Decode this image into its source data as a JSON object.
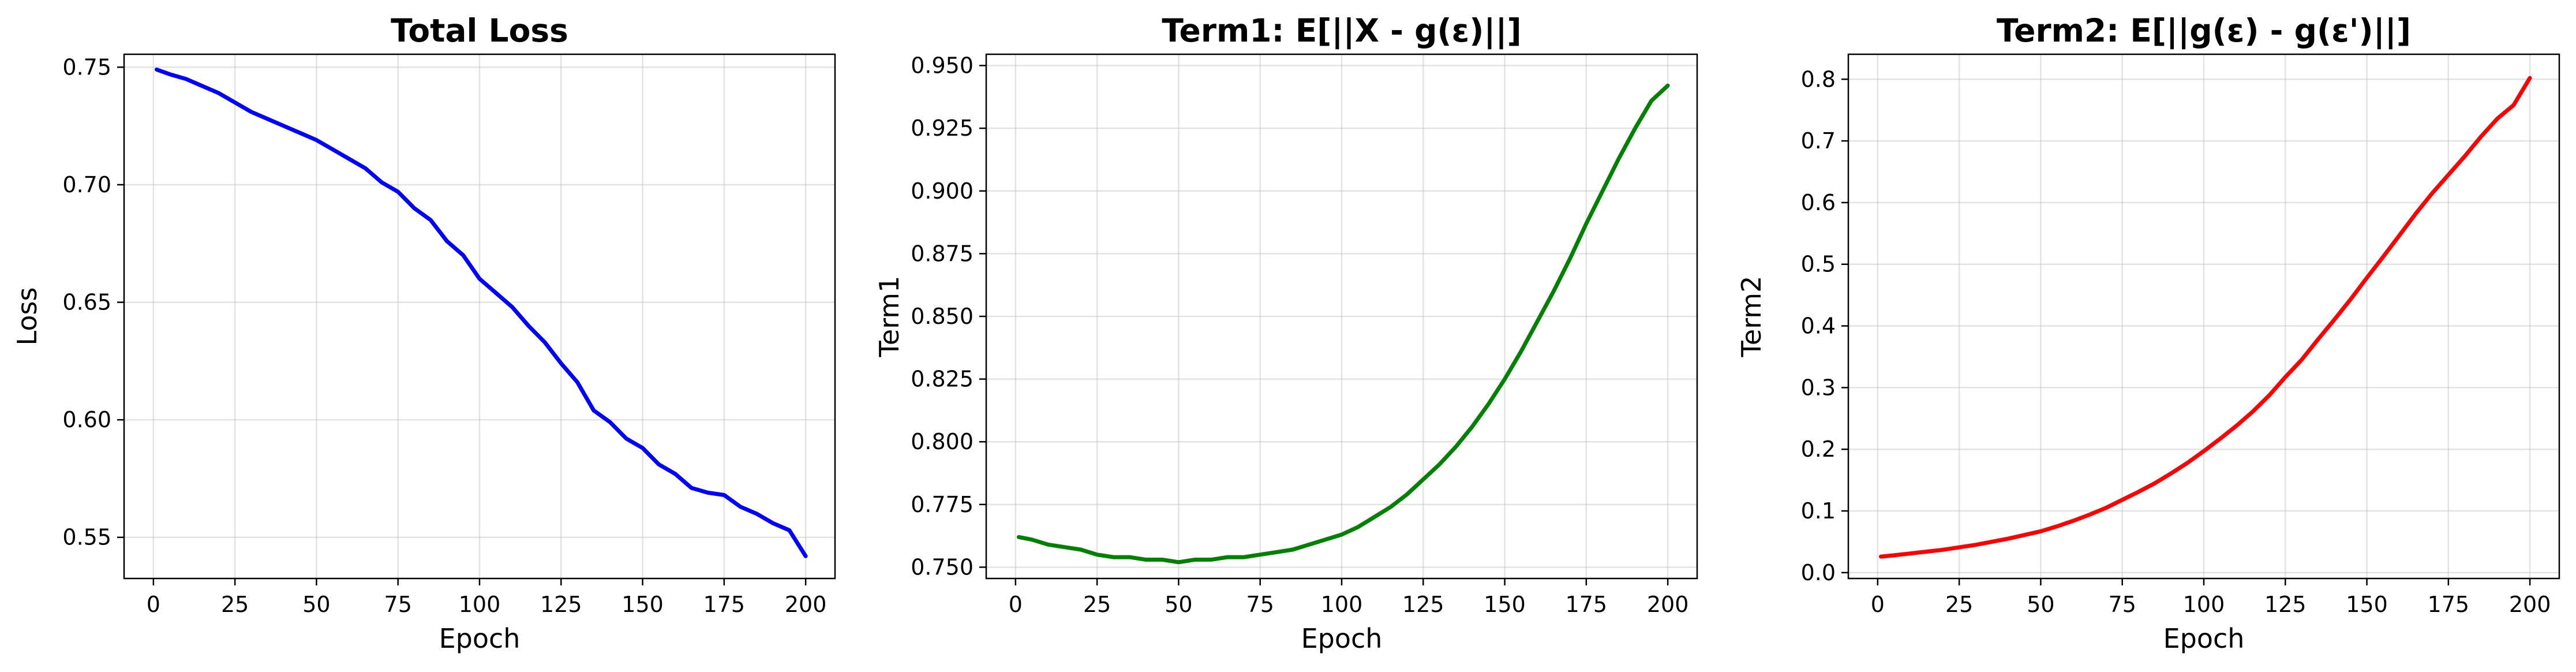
{
  "chart_data": [
    {
      "type": "line",
      "title": "Total Loss",
      "xlabel": "Epoch",
      "ylabel": "Loss",
      "xlim": [
        -9,
        209
      ],
      "ylim": [
        0.5325,
        0.7555
      ],
      "xticks": [
        0,
        25,
        50,
        75,
        100,
        125,
        150,
        175,
        200
      ],
      "yticks": [
        0.55,
        0.6,
        0.65,
        0.7,
        0.75
      ],
      "ytick_decimals": 2,
      "grid": true,
      "series": [
        {
          "color": "#0000ff",
          "x": [
            1,
            5,
            10,
            15,
            20,
            25,
            30,
            35,
            40,
            45,
            50,
            55,
            60,
            65,
            70,
            75,
            80,
            85,
            90,
            95,
            100,
            105,
            110,
            115,
            120,
            125,
            130,
            135,
            140,
            145,
            150,
            155,
            160,
            165,
            170,
            175,
            180,
            185,
            190,
            195,
            200
          ],
          "y": [
            0.749,
            0.747,
            0.745,
            0.742,
            0.739,
            0.735,
            0.731,
            0.728,
            0.725,
            0.722,
            0.719,
            0.715,
            0.711,
            0.707,
            0.701,
            0.697,
            0.69,
            0.685,
            0.676,
            0.67,
            0.66,
            0.654,
            0.648,
            0.64,
            0.633,
            0.624,
            0.616,
            0.604,
            0.599,
            0.592,
            0.588,
            0.581,
            0.577,
            0.571,
            0.569,
            0.568,
            0.563,
            0.56,
            0.556,
            0.553,
            0.542
          ]
        }
      ]
    },
    {
      "type": "line",
      "title": "Term1: E[||X - g(ε)||]",
      "xlabel": "Epoch",
      "ylabel": "Term1",
      "xlim": [
        -9,
        209
      ],
      "ylim": [
        0.7455,
        0.9545
      ],
      "xticks": [
        0,
        25,
        50,
        75,
        100,
        125,
        150,
        175,
        200
      ],
      "yticks": [
        0.75,
        0.775,
        0.8,
        0.825,
        0.85,
        0.875,
        0.9,
        0.925,
        0.95
      ],
      "ytick_decimals": 3,
      "grid": true,
      "series": [
        {
          "color": "#008000",
          "x": [
            1,
            5,
            10,
            15,
            20,
            25,
            30,
            35,
            40,
            45,
            50,
            55,
            60,
            65,
            70,
            75,
            80,
            85,
            90,
            95,
            100,
            105,
            110,
            115,
            120,
            125,
            130,
            135,
            140,
            145,
            150,
            155,
            160,
            165,
            170,
            175,
            180,
            185,
            190,
            195,
            200
          ],
          "y": [
            0.762,
            0.761,
            0.759,
            0.758,
            0.757,
            0.755,
            0.754,
            0.754,
            0.753,
            0.753,
            0.752,
            0.753,
            0.753,
            0.754,
            0.754,
            0.755,
            0.756,
            0.757,
            0.759,
            0.761,
            0.763,
            0.766,
            0.77,
            0.774,
            0.779,
            0.785,
            0.791,
            0.798,
            0.806,
            0.815,
            0.825,
            0.836,
            0.848,
            0.86,
            0.873,
            0.887,
            0.9,
            0.913,
            0.925,
            0.936,
            0.942
          ]
        }
      ]
    },
    {
      "type": "line",
      "title": "Term2: E[||g(ε) - g(ε')||]",
      "xlabel": "Epoch",
      "ylabel": "Term2",
      "xlim": [
        -9,
        209
      ],
      "ylim": [
        -0.0095,
        0.8405
      ],
      "xticks": [
        0,
        25,
        50,
        75,
        100,
        125,
        150,
        175,
        200
      ],
      "yticks": [
        0.0,
        0.1,
        0.2,
        0.3,
        0.4,
        0.5,
        0.6,
        0.7,
        0.8
      ],
      "ytick_decimals": 1,
      "grid": true,
      "series": [
        {
          "color": "#ff0000",
          "x": [
            1,
            5,
            10,
            15,
            20,
            25,
            30,
            35,
            40,
            45,
            50,
            55,
            60,
            65,
            70,
            75,
            80,
            85,
            90,
            95,
            100,
            105,
            110,
            115,
            120,
            125,
            130,
            135,
            140,
            145,
            150,
            155,
            160,
            165,
            170,
            175,
            180,
            185,
            190,
            195,
            200
          ],
          "y": [
            0.026,
            0.028,
            0.031,
            0.034,
            0.037,
            0.041,
            0.045,
            0.05,
            0.055,
            0.061,
            0.067,
            0.075,
            0.084,
            0.094,
            0.105,
            0.118,
            0.131,
            0.145,
            0.161,
            0.178,
            0.197,
            0.217,
            0.238,
            0.261,
            0.287,
            0.317,
            0.345,
            0.378,
            0.41,
            0.443,
            0.478,
            0.512,
            0.547,
            0.582,
            0.615,
            0.645,
            0.675,
            0.707,
            0.736,
            0.758,
            0.802
          ]
        }
      ]
    }
  ]
}
